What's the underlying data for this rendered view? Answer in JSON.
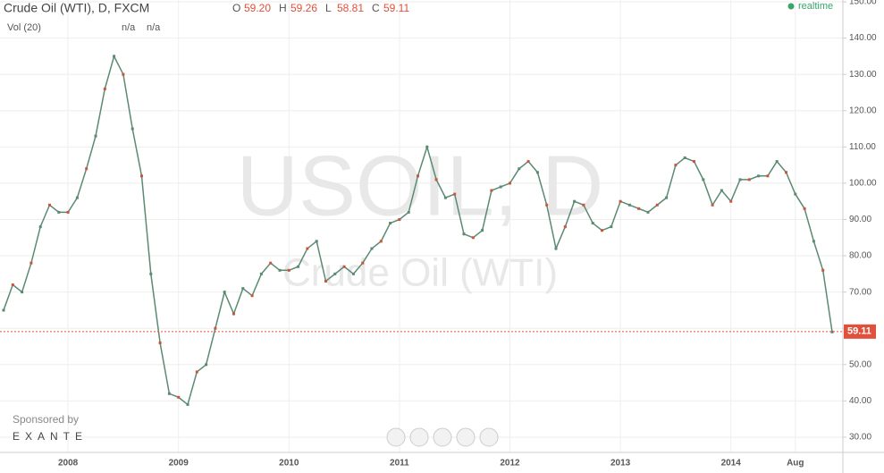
{
  "chart_data": {
    "type": "line",
    "title": "Crude Oil (WTI), D, FXCM",
    "ohlc": [
      {
        "name": "O",
        "value": 59.2,
        "value_label": "59.20"
      },
      {
        "name": "H",
        "value": 59.26,
        "value_label": "59.26"
      },
      {
        "name": "L",
        "value": 58.81,
        "value_label": "58.81"
      },
      {
        "name": "C",
        "value": 59.11,
        "value_label": "59.11"
      }
    ],
    "volume_label": "Vol (20)",
    "volume_values": [
      "n/a",
      "n/a"
    ],
    "status": "realtime",
    "watermark": "USOIL, D",
    "watermark_subtitle": "Crude Oil (WTI)",
    "sponsor": "Sponsored by",
    "sponsor_name": "EXANTE",
    "last_price": 59.11,
    "last_price_label": "59.11",
    "color": "#5b8a72",
    "last_color": "#e0503a",
    "categories": [
      null,
      null,
      null,
      null,
      null,
      null,
      null,
      "2008",
      null,
      null,
      null,
      null,
      null,
      null,
      null,
      null,
      null,
      null,
      null,
      "2009",
      null,
      null,
      null,
      null,
      null,
      null,
      null,
      null,
      null,
      null,
      null,
      "2010",
      null,
      null,
      null,
      null,
      null,
      null,
      null,
      null,
      null,
      null,
      null,
      "2011",
      null,
      null,
      null,
      null,
      null,
      null,
      null,
      null,
      null,
      null,
      null,
      "2012",
      null,
      null,
      null,
      null,
      null,
      null,
      null,
      null,
      null,
      null,
      null,
      "2013",
      null,
      null,
      null,
      null,
      null,
      null,
      null,
      null,
      null,
      null,
      null,
      "2014",
      null,
      null,
      null,
      null,
      null,
      null,
      "Aug",
      null,
      null,
      null,
      null
    ],
    "values": [
      65,
      72,
      70,
      78,
      88,
      94,
      92,
      92,
      96,
      104,
      113,
      126,
      135,
      130,
      115,
      102,
      75,
      56,
      42,
      41,
      39,
      48,
      50,
      60,
      70,
      64,
      71,
      69,
      75,
      78,
      76,
      76,
      77,
      82,
      84,
      73,
      75,
      77,
      75,
      78,
      82,
      84,
      89,
      90,
      92,
      102,
      110,
      101,
      96,
      97,
      86,
      85,
      87,
      98,
      99,
      100,
      104,
      106,
      103,
      94,
      82,
      88,
      95,
      94,
      89,
      87,
      88,
      95,
      94,
      93,
      92,
      94,
      96,
      105,
      107,
      106,
      101,
      94,
      98,
      95,
      101,
      101,
      102,
      102,
      106,
      103,
      97,
      93,
      84,
      76,
      59
    ],
    "ylim": [
      25.8,
      150.5
    ],
    "yticks": [
      {
        "value": 30,
        "label": "30.00"
      },
      {
        "value": 40,
        "label": "40.00"
      },
      {
        "value": 50,
        "label": "50.00"
      },
      {
        "value": 60,
        "label": "60.00"
      },
      {
        "value": 70,
        "label": "70.00"
      },
      {
        "value": 80,
        "label": "80.00"
      },
      {
        "value": 90,
        "label": "90.00"
      },
      {
        "value": 100,
        "label": "100.00"
      },
      {
        "value": 110,
        "label": "110.00"
      },
      {
        "value": 120,
        "label": "120.00"
      },
      {
        "value": 130,
        "label": "130.00"
      },
      {
        "value": 140,
        "label": "140.00"
      },
      {
        "value": 150,
        "label": "150.00"
      }
    ],
    "grid": true
  }
}
